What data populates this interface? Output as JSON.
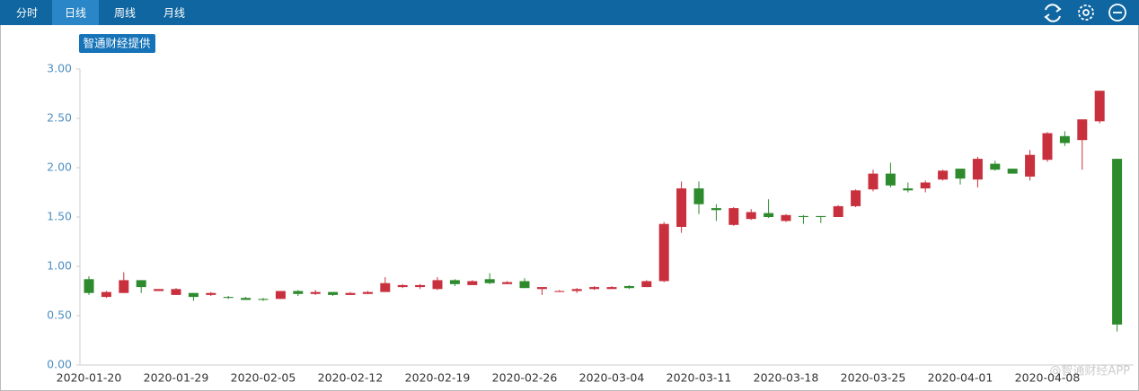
{
  "tabs": [
    "分时",
    "日线",
    "周线",
    "月线"
  ],
  "selected_tab": 1,
  "badge": "智通财经提供",
  "watermark": "@智通财经APP",
  "chart_data": {
    "type": "candlestick",
    "up_color": "#c9303e",
    "down_color": "#2d8a2d",
    "ylim": [
      0,
      3
    ],
    "yticks": [
      {
        "value": 0,
        "label": "0.00"
      },
      {
        "value": 0.5,
        "label": "0.50"
      },
      {
        "value": 1,
        "label": "1.00"
      },
      {
        "value": 1.5,
        "label": "1.50"
      },
      {
        "value": 2,
        "label": "2.00"
      },
      {
        "value": 2.5,
        "label": "2.50"
      },
      {
        "value": 3,
        "label": "3.00"
      }
    ],
    "categories": [
      "2020-01-20",
      null,
      null,
      null,
      null,
      "2020-01-29",
      null,
      null,
      null,
      null,
      "2020-02-05",
      null,
      null,
      null,
      null,
      "2020-02-12",
      null,
      null,
      null,
      null,
      "2020-02-19",
      null,
      null,
      null,
      null,
      "2020-02-26",
      null,
      null,
      null,
      null,
      "2020-03-04",
      null,
      null,
      null,
      null,
      "2020-03-11",
      null,
      null,
      null,
      null,
      "2020-03-18",
      null,
      null,
      null,
      null,
      "2020-03-25",
      null,
      null,
      null,
      null,
      "2020-04-01",
      null,
      null,
      null,
      null,
      "2020-04-08",
      null,
      null,
      null,
      null
    ],
    "open": [
      0.87,
      0.69,
      0.73,
      0.86,
      0.75,
      0.71,
      0.73,
      0.71,
      0.69,
      0.68,
      0.67,
      0.67,
      0.75,
      0.72,
      0.74,
      0.71,
      0.72,
      0.74,
      0.79,
      0.79,
      0.77,
      0.86,
      0.81,
      0.87,
      0.82,
      0.85,
      0.77,
      0.74,
      0.75,
      0.77,
      0.77,
      0.8,
      0.79,
      0.85,
      1.4,
      1.79,
      1.59,
      1.42,
      1.48,
      1.54,
      1.46,
      1.51,
      1.51,
      1.5,
      1.61,
      1.78,
      1.94,
      1.79,
      1.79,
      1.88,
      1.99,
      1.88,
      2.04,
      1.99,
      1.91,
      2.08,
      2.32,
      2.28,
      2.47,
      2.09
    ],
    "high": [
      0.9,
      0.75,
      0.94,
      0.86,
      0.77,
      0.78,
      0.73,
      0.74,
      0.7,
      0.69,
      0.68,
      0.75,
      0.76,
      0.76,
      0.74,
      0.74,
      0.75,
      0.89,
      0.82,
      0.82,
      0.89,
      0.87,
      0.86,
      0.93,
      0.85,
      0.88,
      0.79,
      0.76,
      0.78,
      0.8,
      0.8,
      0.81,
      0.86,
      1.45,
      1.86,
      1.86,
      1.63,
      1.6,
      1.58,
      1.68,
      1.53,
      1.52,
      1.51,
      1.62,
      1.78,
      1.98,
      2.05,
      1.85,
      1.87,
      1.98,
      1.99,
      2.11,
      2.07,
      1.99,
      2.18,
      2.36,
      2.37,
      2.49,
      2.78,
      2.09
    ],
    "low": [
      0.71,
      0.68,
      0.73,
      0.73,
      0.75,
      0.71,
      0.65,
      0.7,
      0.67,
      0.66,
      0.65,
      0.67,
      0.7,
      0.71,
      0.7,
      0.71,
      0.72,
      0.74,
      0.78,
      0.77,
      0.76,
      0.8,
      0.81,
      0.82,
      0.82,
      0.78,
      0.71,
      0.74,
      0.73,
      0.76,
      0.77,
      0.77,
      0.79,
      0.84,
      1.34,
      1.53,
      1.46,
      1.41,
      1.47,
      1.49,
      1.45,
      1.43,
      1.44,
      1.5,
      1.6,
      1.76,
      1.8,
      1.75,
      1.75,
      1.87,
      1.83,
      1.8,
      1.97,
      1.94,
      1.87,
      2.06,
      2.22,
      1.98,
      2.45,
      0.34
    ],
    "close": [
      0.73,
      0.74,
      0.86,
      0.79,
      0.77,
      0.77,
      0.69,
      0.73,
      0.68,
      0.66,
      0.66,
      0.75,
      0.72,
      0.74,
      0.71,
      0.73,
      0.74,
      0.83,
      0.81,
      0.81,
      0.86,
      0.82,
      0.85,
      0.83,
      0.84,
      0.78,
      0.79,
      0.75,
      0.77,
      0.79,
      0.79,
      0.78,
      0.85,
      1.43,
      1.79,
      1.63,
      1.57,
      1.59,
      1.55,
      1.5,
      1.52,
      1.5,
      1.5,
      1.61,
      1.77,
      1.94,
      1.82,
      1.77,
      1.85,
      1.97,
      1.89,
      2.09,
      1.98,
      1.94,
      2.13,
      2.35,
      2.25,
      2.49,
      2.78,
      0.41
    ]
  }
}
